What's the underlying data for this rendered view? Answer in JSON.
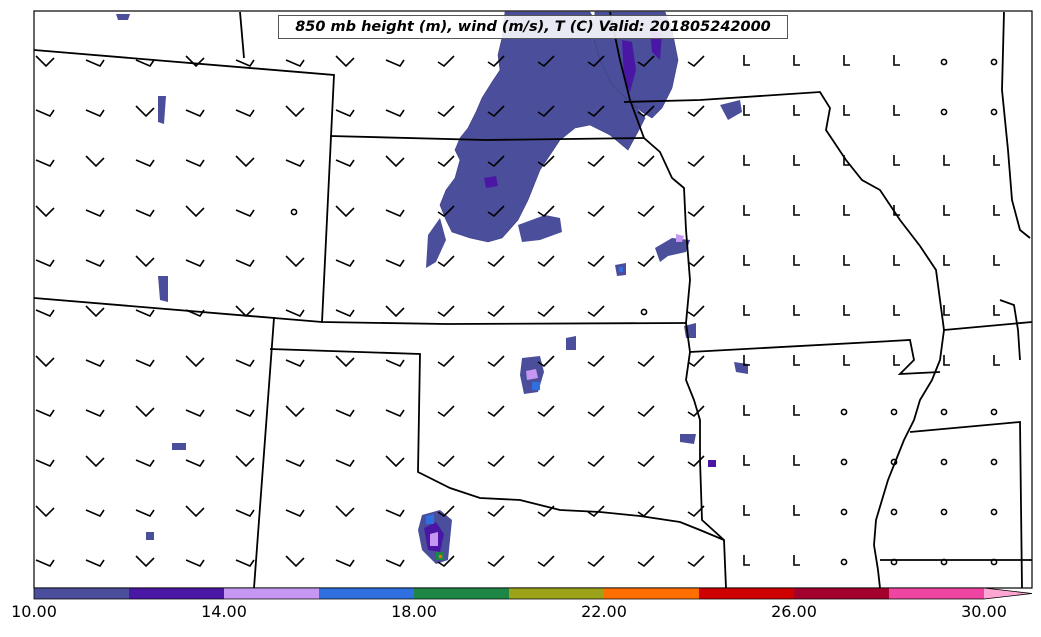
{
  "title": "850 mb height (m), wind (m/s), T (C) Valid: 201805242000",
  "colorbar": {
    "min": 10,
    "max": 30,
    "step": 2,
    "extend": "max",
    "colors": [
      "#4b4e9a",
      "#4a17a4",
      "#c596f2",
      "#2f6fe0",
      "#1e8645",
      "#9da318",
      "#ff6f00",
      "#cf0000",
      "#a3002c",
      "#f044a2"
    ],
    "extend_color": "#ffa6d2",
    "tick_labels": [
      "10.00",
      "14.00",
      "18.00",
      "22.00",
      "26.00",
      "30.00"
    ],
    "tick_values": [
      10,
      14,
      18,
      22,
      26,
      30
    ]
  },
  "map": {
    "region": "central-us",
    "states_shown": [
      "Kansas",
      "Nebraska",
      "Missouri",
      "Oklahoma",
      "Colorado",
      "Iowa",
      "Illinois",
      "Arkansas",
      "Texas",
      "New Mexico",
      "Wyoming"
    ],
    "wind_barbs": "gridded",
    "calm_markers": "circle"
  },
  "chart_data": {
    "type": "heatmap",
    "variable": "850 mb temperature (C)",
    "valid": "201805242000",
    "vmin": 10,
    "vmax": 30,
    "levels": [
      10,
      12,
      14,
      16,
      18,
      20,
      22,
      24,
      26,
      28,
      30
    ],
    "dominant_range": [
      10,
      12
    ]
  }
}
